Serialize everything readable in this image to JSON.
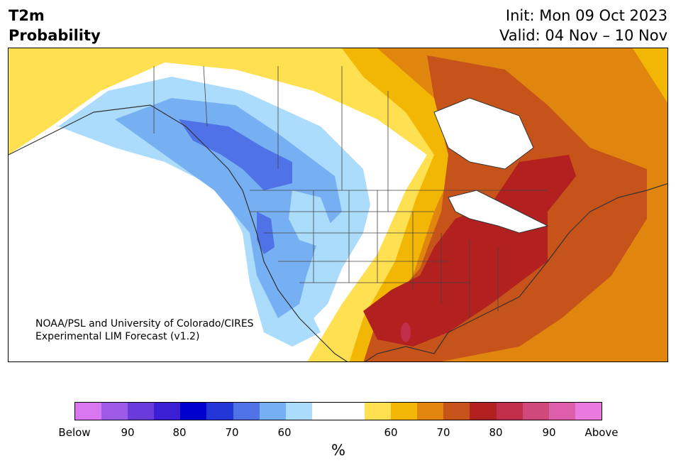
{
  "title": {
    "line1": "T2m",
    "line2": "Probability"
  },
  "init": "Init: Mon 09 Oct 2023",
  "valid": "Valid: 04 Nov – 10 Nov",
  "credit": {
    "line1": "NOAA/PSL and University of Colorado/CIRES",
    "line2": "Experimental LIM Forecast (v1.2)"
  },
  "colorbar": {
    "colors": [
      "#d877f0",
      "#9c5ae6",
      "#6a3bdb",
      "#3a1fd4",
      "#0000cc",
      "#2236d8",
      "#4f72e6",
      "#76b0f3",
      "#acdcfc",
      "#ffffff",
      "#ffffff",
      "#ffe050",
      "#f2b705",
      "#e0860f",
      "#c6531a",
      "#b22020",
      "#c12e4a",
      "#cf4a7a",
      "#dd5eaa",
      "#e87ae0"
    ],
    "ticks": [
      "Below",
      "90",
      "80",
      "70",
      "60",
      "60",
      "70",
      "80",
      "90",
      "Above"
    ],
    "unit": "%"
  },
  "legend_classes": {
    "cold": [
      "Below",
      "90",
      "80",
      "70",
      "60"
    ],
    "warm": [
      "60",
      "70",
      "80",
      "90",
      "Above"
    ]
  }
}
